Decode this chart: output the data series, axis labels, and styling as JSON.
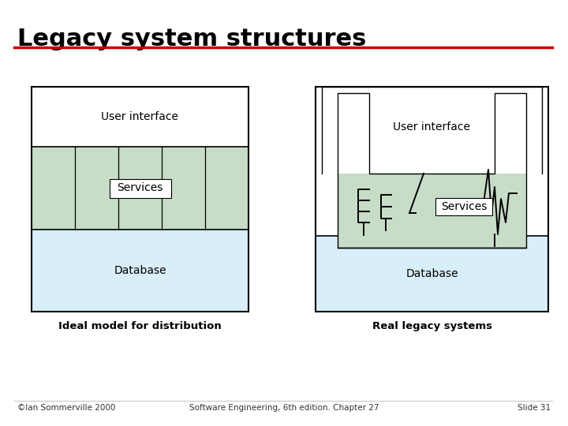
{
  "title": "Legacy system structures",
  "title_color": "#000000",
  "title_fontsize": 22,
  "underline_color": "#cc0000",
  "bg_color": "#ffffff",
  "color_green": "#c8ddc8",
  "color_blue": "#d8eef8",
  "color_white": "#ffffff",
  "color_black": "#000000",
  "left_label": "Ideal model for distribution",
  "right_label": "Real legacy systems",
  "footer_left": "©Ian Sommerville 2000",
  "footer_center": "Software Engineering, 6th edition. Chapter 27",
  "footer_right": "Slide 31"
}
